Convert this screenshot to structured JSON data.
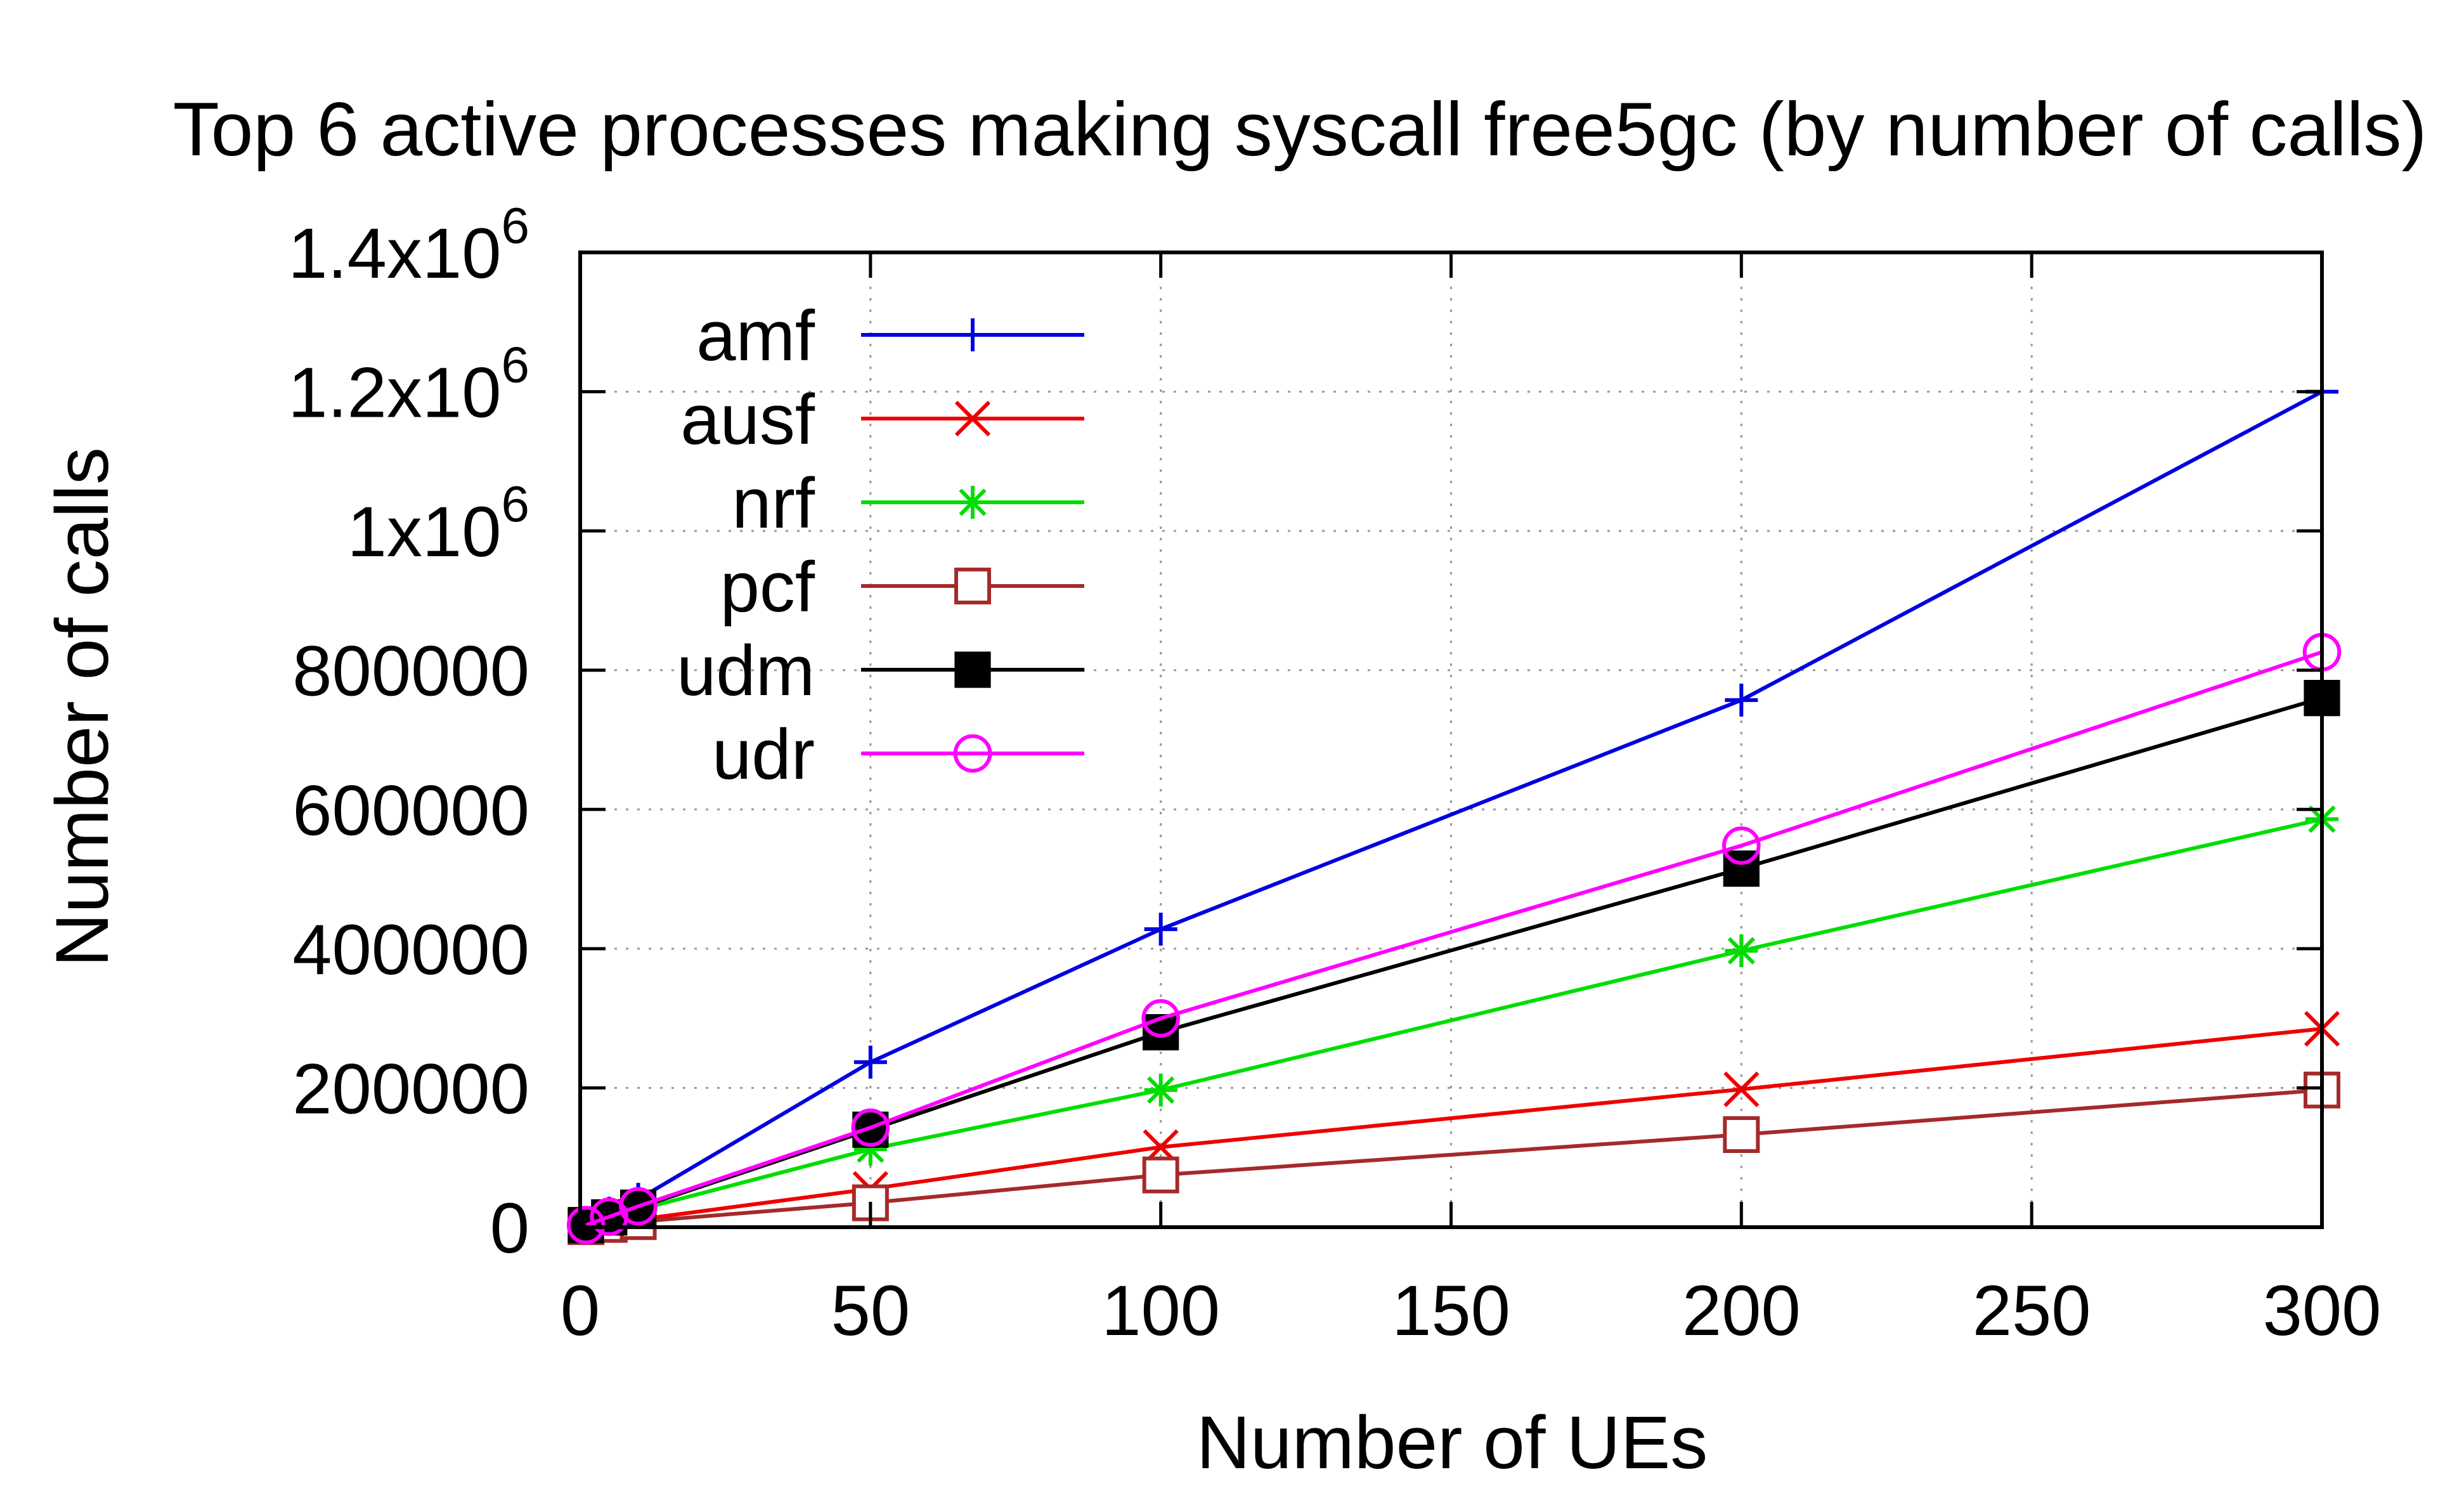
{
  "chart_data": {
    "type": "line",
    "title": "Top 6 active processes making syscall free5gc (by number of calls)",
    "xlabel": "Number of UEs",
    "ylabel": "Number of calls",
    "xlim": [
      0,
      300
    ],
    "ylim": [
      0,
      1400000
    ],
    "grid": true,
    "legend_position": "top-left",
    "x_ticks": [
      {
        "value": 0,
        "label": "0"
      },
      {
        "value": 50,
        "label": "50"
      },
      {
        "value": 100,
        "label": "100"
      },
      {
        "value": 150,
        "label": "150"
      },
      {
        "value": 200,
        "label": "200"
      },
      {
        "value": 250,
        "label": "250"
      },
      {
        "value": 300,
        "label": "300"
      }
    ],
    "y_ticks": [
      {
        "value": 0,
        "mantissa": "0",
        "exp": ""
      },
      {
        "value": 200000,
        "mantissa": "200000",
        "exp": ""
      },
      {
        "value": 400000,
        "mantissa": "400000",
        "exp": ""
      },
      {
        "value": 600000,
        "mantissa": "600000",
        "exp": ""
      },
      {
        "value": 800000,
        "mantissa": "800000",
        "exp": ""
      },
      {
        "value": 1000000,
        "mantissa": "1x10",
        "exp": "6"
      },
      {
        "value": 1200000,
        "mantissa": "1.2x10",
        "exp": "6"
      },
      {
        "value": 1400000,
        "mantissa": "1.4x10",
        "exp": "6"
      }
    ],
    "x": [
      1,
      5,
      10,
      50,
      100,
      200,
      300
    ],
    "series": [
      {
        "name": "amf",
        "color": "#0000e0",
        "marker": "plus",
        "values": [
          4000,
          20000,
          40000,
          237000,
          428000,
          757000,
          1200000
        ]
      },
      {
        "name": "ausf",
        "color": "#ee0000",
        "marker": "cross",
        "values": [
          1000,
          5000,
          11000,
          55000,
          115000,
          198000,
          285000
        ]
      },
      {
        "name": "nrf",
        "color": "#00dd00",
        "marker": "star",
        "values": [
          2000,
          12000,
          25000,
          112000,
          197000,
          397000,
          586000
        ]
      },
      {
        "name": "pcf",
        "color": "#a52a2a",
        "marker": "square-open",
        "values": [
          800,
          4000,
          8000,
          35000,
          75000,
          133000,
          197000
        ]
      },
      {
        "name": "udm",
        "color": "#000000",
        "marker": "square-filled",
        "values": [
          3000,
          14000,
          28000,
          140000,
          280000,
          515000,
          760000
        ]
      },
      {
        "name": "udr",
        "color": "#ff00ff",
        "marker": "circle-open",
        "values": [
          3000,
          15000,
          30000,
          143000,
          300000,
          548000,
          826000
        ]
      }
    ]
  }
}
